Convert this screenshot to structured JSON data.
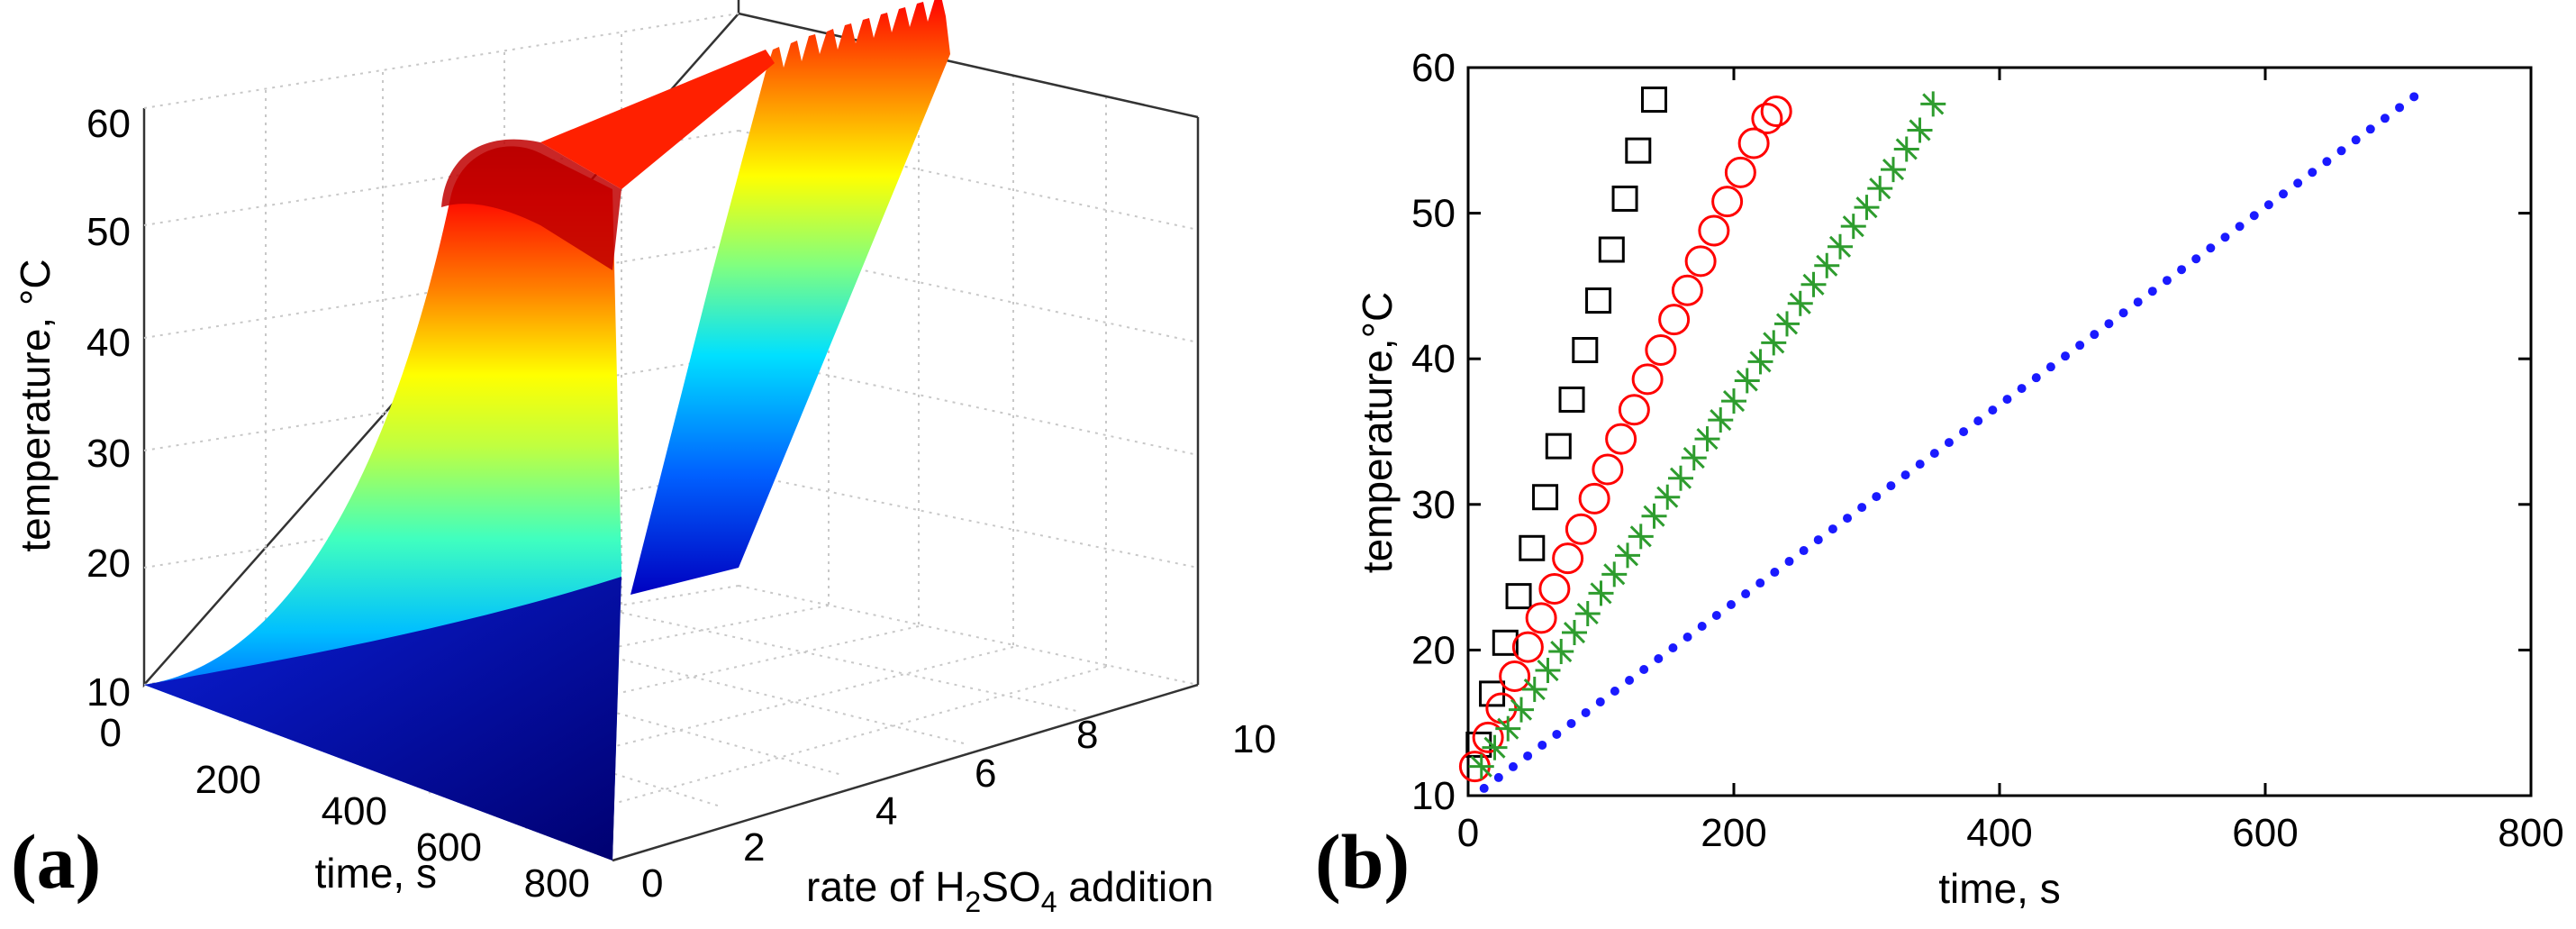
{
  "panel_a": {
    "label": "(a)",
    "zlabel": "temperature, °C",
    "xlabel": "time, s",
    "ylabel_parts": [
      "rate of H",
      "2",
      "SO",
      "4",
      " addition"
    ],
    "z_ticks": [
      "10",
      "20",
      "30",
      "40",
      "50",
      "60"
    ],
    "x_ticks": [
      "0",
      "200",
      "400",
      "600",
      "800"
    ],
    "y_ticks": [
      "0",
      "2",
      "4",
      "6",
      "8",
      "10"
    ]
  },
  "panel_b": {
    "label": "(b)",
    "xlabel": "time, s",
    "ylabel": "temperature,°C",
    "x_ticks": [
      "0",
      "200",
      "400",
      "600",
      "800"
    ],
    "y_ticks": [
      "10",
      "20",
      "30",
      "40",
      "50",
      "60"
    ]
  },
  "chart_data": [
    {
      "type": "surface",
      "title": "",
      "xlabel": "time, s",
      "ylabel": "rate of H2SO4 addition",
      "zlabel": "temperature, °C",
      "xlim": [
        0,
        800
      ],
      "ylim": [
        0,
        10
      ],
      "zlim": [
        10,
        60
      ],
      "grid": true,
      "colormap": "jet",
      "description_values": {
        "temperature_at_start": 10,
        "temperature_at_end": 58
      }
    },
    {
      "type": "scatter",
      "title": "",
      "xlabel": "time, s",
      "ylabel": "temperature,°C",
      "xlim": [
        0,
        800
      ],
      "ylim": [
        10,
        60
      ],
      "grid": false,
      "series": [
        {
          "name": "squares",
          "marker": "square",
          "color": "#000000",
          "x": [
            8,
            18,
            28,
            38,
            48,
            58,
            68,
            78,
            88,
            98,
            108,
            118,
            128,
            140
          ],
          "y": [
            13.5,
            17,
            20.5,
            23.7,
            27,
            30.5,
            34,
            37.2,
            40.6,
            44,
            47.5,
            51,
            54.3,
            57.8
          ]
        },
        {
          "name": "circles",
          "marker": "circle",
          "color": "#ff0000",
          "x": [
            5,
            15,
            25,
            35,
            45,
            55,
            65,
            75,
            85,
            95,
            105,
            115,
            125,
            135,
            145,
            155,
            165,
            175,
            185,
            195,
            205,
            215,
            225,
            232
          ],
          "y": [
            12,
            14,
            16,
            18.2,
            20.2,
            22.2,
            24.2,
            26.3,
            28.3,
            30.4,
            32.4,
            34.5,
            36.5,
            38.6,
            40.6,
            42.7,
            44.7,
            46.7,
            48.8,
            50.8,
            52.8,
            54.8,
            56.5,
            57
          ]
        },
        {
          "name": "crosses",
          "marker": "plus-cross",
          "color": "#2e9c2e",
          "x": [
            10,
            20,
            30,
            40,
            50,
            60,
            70,
            80,
            90,
            100,
            110,
            120,
            130,
            140,
            150,
            160,
            170,
            180,
            190,
            200,
            210,
            220,
            230,
            240,
            250,
            260,
            270,
            280,
            290,
            300,
            310,
            320,
            330,
            340,
            350
          ],
          "y": [
            12,
            13.3,
            14.6,
            15.9,
            17.3,
            18.6,
            19.9,
            21.2,
            22.5,
            23.9,
            25.2,
            26.5,
            27.8,
            29.2,
            30.5,
            31.8,
            33.2,
            34.5,
            35.8,
            37.1,
            38.5,
            39.8,
            41.1,
            42.4,
            43.8,
            45.1,
            46.4,
            47.7,
            49.1,
            50.4,
            51.7,
            53,
            54.4,
            55.7,
            57.5
          ]
        },
        {
          "name": "dots",
          "marker": "dot",
          "color": "#1a1aff",
          "x_start": 12,
          "y_start": 10.5,
          "x_end": 712,
          "y_end": 58,
          "count": 65
        }
      ]
    }
  ]
}
